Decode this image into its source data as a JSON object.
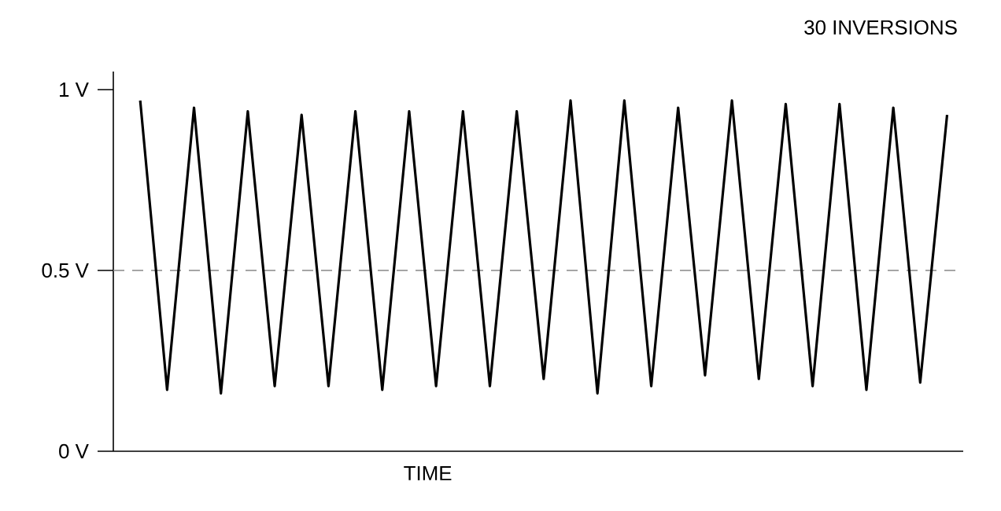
{
  "chart_data": {
    "type": "line",
    "title": "30 INVERSIONS",
    "xlabel": "TIME",
    "categories": [
      null,
      null,
      null,
      null,
      null,
      null,
      null,
      null,
      null,
      null,
      null,
      null,
      null,
      null,
      null,
      null,
      null,
      null,
      null,
      null,
      null,
      null,
      null,
      null,
      null,
      null,
      null,
      null,
      null,
      null,
      null
    ],
    "series": [
      {
        "color": "#000000",
        "values": [
          0.97,
          0.17,
          0.95,
          0.16,
          0.94,
          0.18,
          0.93,
          0.18,
          0.94,
          0.17,
          0.94,
          0.18,
          0.94,
          0.18,
          0.94,
          0.2,
          0.97,
          0.16,
          0.97,
          0.18,
          0.95,
          0.21,
          0.97,
          0.2,
          0.96,
          0.18,
          0.96,
          0.17,
          0.95,
          0.19,
          0.93
        ]
      }
    ],
    "ylim": [
      0,
      1.05
    ],
    "yticks": [
      {
        "value": 0,
        "label": "0 V"
      },
      {
        "value": 0.5,
        "label": "0.5 V"
      },
      {
        "value": 1,
        "label": "1 V"
      }
    ],
    "tick_labels": "y",
    "ref_lines": [
      {
        "axis": "y",
        "value": 0.5,
        "color": "#888888",
        "line_style": "dashed"
      }
    ]
  }
}
